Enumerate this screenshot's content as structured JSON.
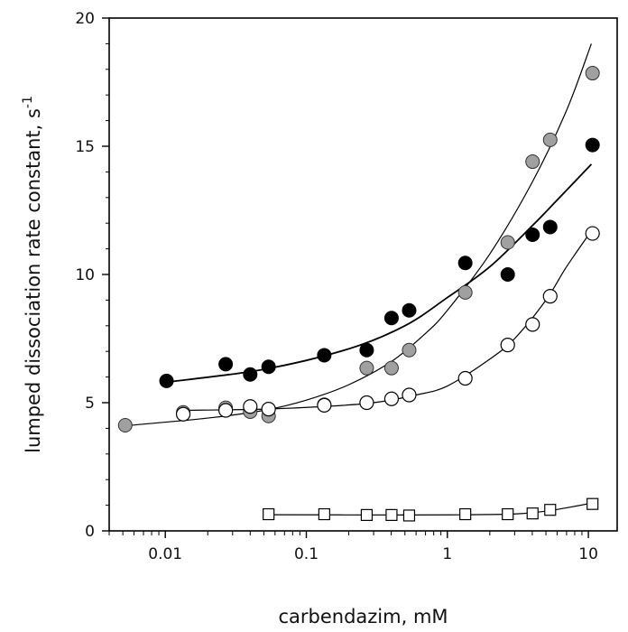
{
  "chart_data": {
    "type": "scatter",
    "title": "",
    "xlabel": "carbendazim, mM",
    "ylabel": "lumped dissociation rate constant, s",
    "ylabel_superscript": "-1",
    "xscale": "log",
    "xlim": [
      0.004,
      16
    ],
    "ylim": [
      0,
      20
    ],
    "xticks": [
      {
        "value": 0.01,
        "label": "0.01"
      },
      {
        "value": 0.1,
        "label": "0.1"
      },
      {
        "value": 1,
        "label": "1"
      },
      {
        "value": 10,
        "label": "10"
      }
    ],
    "yticks": [
      {
        "value": 0,
        "label": "0"
      },
      {
        "value": 5,
        "label": "5"
      },
      {
        "value": 10,
        "label": "10"
      },
      {
        "value": 15,
        "label": "15"
      },
      {
        "value": 20,
        "label": "20"
      }
    ],
    "grid": false,
    "legend": "none",
    "series": [
      {
        "marker": "filled-circle",
        "color": "#000000",
        "points": [
          [
            0.0102,
            5.85
          ],
          [
            0.0268,
            6.5
          ],
          [
            0.04,
            6.1
          ],
          [
            0.054,
            6.4
          ],
          [
            0.134,
            6.85
          ],
          [
            0.268,
            7.05
          ],
          [
            0.402,
            8.3
          ],
          [
            0.536,
            8.6
          ],
          [
            1.34,
            10.45
          ],
          [
            2.68,
            10.0
          ],
          [
            4.02,
            11.55
          ],
          [
            5.36,
            11.85
          ],
          [
            10.7,
            15.05
          ]
        ],
        "fit": [
          [
            0.0102,
            5.8
          ],
          [
            0.05,
            6.3
          ],
          [
            0.2,
            7.1
          ],
          [
            0.5,
            8.0
          ],
          [
            1.0,
            9.1
          ],
          [
            2.0,
            10.3
          ],
          [
            4.0,
            11.9
          ],
          [
            6.0,
            12.9
          ],
          [
            10.5,
            14.3
          ]
        ]
      },
      {
        "marker": "gray-circle",
        "color": "#a0a0a0",
        "points": [
          [
            0.0052,
            4.12
          ],
          [
            0.0134,
            4.62
          ],
          [
            0.0268,
            4.8
          ],
          [
            0.04,
            4.65
          ],
          [
            0.054,
            4.48
          ],
          [
            0.134,
            4.92
          ],
          [
            0.268,
            6.35
          ],
          [
            0.402,
            6.35
          ],
          [
            0.536,
            7.05
          ],
          [
            1.34,
            9.3
          ],
          [
            2.68,
            11.25
          ],
          [
            4.02,
            14.4
          ],
          [
            5.36,
            15.25
          ],
          [
            10.7,
            17.85
          ]
        ],
        "fit": [
          [
            0.0052,
            4.1
          ],
          [
            0.02,
            4.4
          ],
          [
            0.05,
            4.7
          ],
          [
            0.1,
            5.1
          ],
          [
            0.2,
            5.7
          ],
          [
            0.4,
            6.6
          ],
          [
            0.7,
            7.7
          ],
          [
            1.0,
            8.6
          ],
          [
            2.0,
            10.8
          ],
          [
            4.0,
            13.6
          ],
          [
            7.0,
            16.4
          ],
          [
            10.5,
            19.0
          ]
        ]
      },
      {
        "marker": "open-circle",
        "color": "#000000",
        "points": [
          [
            0.0134,
            4.55
          ],
          [
            0.0268,
            4.7
          ],
          [
            0.04,
            4.85
          ],
          [
            0.054,
            4.75
          ],
          [
            0.134,
            4.9
          ],
          [
            0.268,
            5.0
          ],
          [
            0.402,
            5.15
          ],
          [
            0.536,
            5.3
          ],
          [
            1.34,
            5.95
          ],
          [
            2.68,
            7.25
          ],
          [
            4.02,
            8.05
          ],
          [
            5.36,
            9.15
          ],
          [
            10.7,
            11.6
          ]
        ],
        "fit": [
          [
            0.0134,
            4.7
          ],
          [
            0.05,
            4.75
          ],
          [
            0.134,
            4.85
          ],
          [
            0.3,
            5.0
          ],
          [
            0.6,
            5.3
          ],
          [
            1.0,
            5.65
          ],
          [
            2.0,
            6.7
          ],
          [
            3.0,
            7.5
          ],
          [
            5.0,
            9.0
          ],
          [
            7.0,
            10.3
          ],
          [
            10.5,
            11.7
          ]
        ]
      },
      {
        "marker": "open-square",
        "color": "#000000",
        "points": [
          [
            0.054,
            0.65
          ],
          [
            0.134,
            0.65
          ],
          [
            0.268,
            0.62
          ],
          [
            0.402,
            0.62
          ],
          [
            0.536,
            0.6
          ],
          [
            1.34,
            0.65
          ],
          [
            2.68,
            0.65
          ],
          [
            4.02,
            0.68
          ],
          [
            5.36,
            0.82
          ],
          [
            10.7,
            1.05
          ]
        ],
        "fit": [
          [
            0.054,
            0.63
          ],
          [
            0.5,
            0.62
          ],
          [
            1.34,
            0.63
          ],
          [
            3.0,
            0.66
          ],
          [
            5.0,
            0.77
          ],
          [
            7.0,
            0.9
          ],
          [
            10.5,
            1.08
          ]
        ]
      }
    ]
  }
}
